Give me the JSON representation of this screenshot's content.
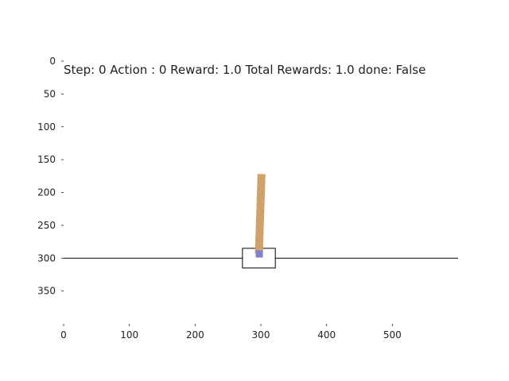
{
  "status": {
    "text": "Step: 0 Action : 0 Reward: 1.0 Total Rewards: 1.0 done: False",
    "step": 0,
    "action": 0,
    "reward": 1.0,
    "total_rewards": 1.0,
    "done": "False"
  },
  "axes": {
    "x_ticks": [
      "0",
      "100",
      "200",
      "300",
      "400",
      "500"
    ],
    "y_ticks": [
      "0",
      "50",
      "100",
      "150",
      "200",
      "250",
      "300",
      "350"
    ],
    "x_range": [
      0,
      600
    ],
    "y_range": [
      400,
      0
    ]
  },
  "scene": {
    "track_y": 300,
    "cart_x": 297,
    "cart_width": 50,
    "cart_top": 285,
    "cart_bottom": 315,
    "pole_top_x": 301,
    "pole_top_y": 172,
    "axle_x": 297,
    "axle_y": 293,
    "colors": {
      "pole": "#d1a16c",
      "axle": "#8080cc",
      "track": "#000000",
      "cart": "#000000"
    }
  }
}
